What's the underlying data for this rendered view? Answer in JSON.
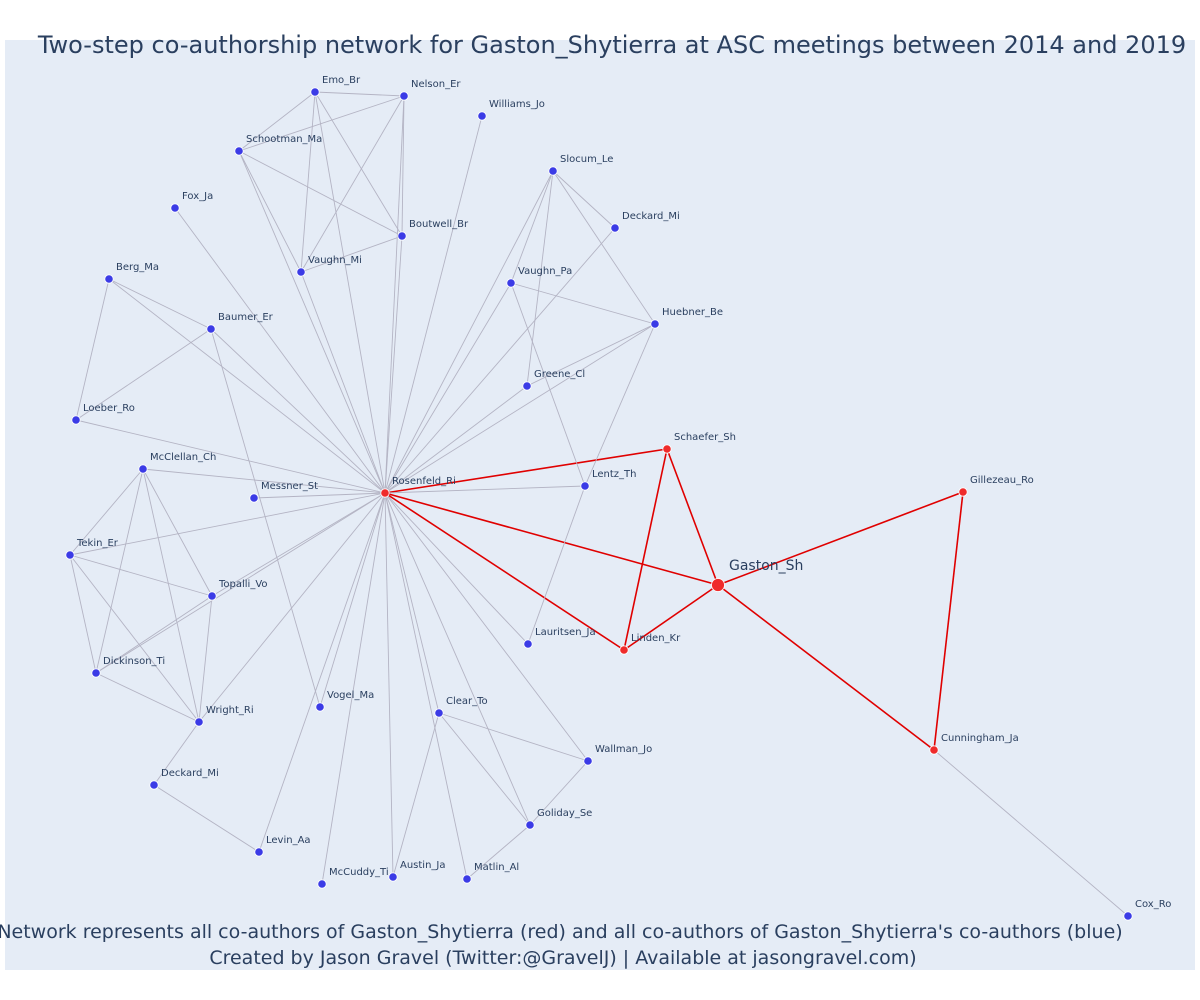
{
  "title": "Two-step co-authorship network for Gaston_Shytierra at ASC meetings between 2014 and 2019",
  "caption_line1": "Network represents all co-authors of Gaston_Shytierra (red) and all co-authors of Gaston_Shytierra's co-authors (blue)",
  "caption_line2": "Created by Jason Gravel (Twitter:@GravelJ) | Available at jasongravel.com)",
  "colors": {
    "background": "#e5ecf6",
    "first_step_node": "#ef2b2b",
    "second_step_node": "#3b3be6",
    "first_step_edge": "#e00000",
    "second_step_edge": "#b4b4c4",
    "text": "#2a3f5f"
  },
  "focal_author": "Gaston_Sh",
  "nodes": [
    {
      "id": "Emo_Br",
      "group": "second"
    },
    {
      "id": "Nelson_Er",
      "group": "second"
    },
    {
      "id": "Williams_Jo",
      "group": "second"
    },
    {
      "id": "Schootman_Ma",
      "group": "second"
    },
    {
      "id": "Slocum_Le",
      "group": "second"
    },
    {
      "id": "Fox_Ja",
      "group": "second"
    },
    {
      "id": "Deckard_Mi",
      "group": "second"
    },
    {
      "id": "Boutwell_Br",
      "group": "second"
    },
    {
      "id": "Vaughn_Mi",
      "group": "second"
    },
    {
      "id": "Berg_Ma",
      "group": "second"
    },
    {
      "id": "Vaughn_Pa",
      "group": "second"
    },
    {
      "id": "Baumer_Er",
      "group": "second"
    },
    {
      "id": "Huebner_Be",
      "group": "second"
    },
    {
      "id": "Greene_Cl",
      "group": "second"
    },
    {
      "id": "Loeber_Ro",
      "group": "second"
    },
    {
      "id": "Schaefer_Sh",
      "group": "first"
    },
    {
      "id": "McClellan_Ch",
      "group": "second"
    },
    {
      "id": "Messner_St",
      "group": "second"
    },
    {
      "id": "Rosenfeld_Ri",
      "group": "first"
    },
    {
      "id": "Lentz_Th",
      "group": "second"
    },
    {
      "id": "Gillezeau_Ro",
      "group": "first"
    },
    {
      "id": "Tekin_Er",
      "group": "second"
    },
    {
      "id": "Gaston_Sh",
      "group": "focal"
    },
    {
      "id": "Topalli_Vo",
      "group": "second"
    },
    {
      "id": "Lauritsen_Ja",
      "group": "second"
    },
    {
      "id": "Linden_Kr",
      "group": "first"
    },
    {
      "id": "Dickinson_Ti",
      "group": "second"
    },
    {
      "id": "Vogel_Ma",
      "group": "second"
    },
    {
      "id": "Clear_To",
      "group": "second"
    },
    {
      "id": "Wright_Ri",
      "group": "second"
    },
    {
      "id": "Cunningham_Ja",
      "group": "first"
    },
    {
      "id": "Wallman_Jo",
      "group": "second"
    },
    {
      "id": "Deckard_Mi ",
      "group": "second"
    },
    {
      "id": "Goliday_Se",
      "group": "second"
    },
    {
      "id": "Levin_Aa",
      "group": "second"
    },
    {
      "id": "McCuddy_Ti",
      "group": "second"
    },
    {
      "id": "Austin_Ja",
      "group": "second"
    },
    {
      "id": "Matlin_Al",
      "group": "second"
    },
    {
      "id": "Cox_Ro",
      "group": "second"
    }
  ],
  "edges": [
    [
      "Gaston_Sh",
      "Rosenfeld_Ri",
      "first"
    ],
    [
      "Gaston_Sh",
      "Schaefer_Sh",
      "first"
    ],
    [
      "Gaston_Sh",
      "Linden_Kr",
      "first"
    ],
    [
      "Gaston_Sh",
      "Gillezeau_Ro",
      "first"
    ],
    [
      "Gaston_Sh",
      "Cunningham_Ja",
      "first"
    ],
    [
      "Rosenfeld_Ri",
      "Schaefer_Sh",
      "first"
    ],
    [
      "Rosenfeld_Ri",
      "Linden_Kr",
      "first"
    ],
    [
      "Schaefer_Sh",
      "Linden_Kr",
      "first"
    ],
    [
      "Gillezeau_Ro",
      "Cunningham_Ja",
      "first"
    ],
    [
      "Cunningham_Ja",
      "Cox_Ro",
      "second"
    ],
    [
      "Rosenfeld_Ri",
      "Emo_Br",
      "second"
    ],
    [
      "Rosenfeld_Ri",
      "Nelson_Er",
      "second"
    ],
    [
      "Rosenfeld_Ri",
      "Williams_Jo",
      "second"
    ],
    [
      "Rosenfeld_Ri",
      "Schootman_Ma",
      "second"
    ],
    [
      "Rosenfeld_Ri",
      "Slocum_Le",
      "second"
    ],
    [
      "Rosenfeld_Ri",
      "Fox_Ja",
      "second"
    ],
    [
      "Rosenfeld_Ri",
      "Deckard_Mi",
      "second"
    ],
    [
      "Rosenfeld_Ri",
      "Boutwell_Br",
      "second"
    ],
    [
      "Rosenfeld_Ri",
      "Vaughn_Mi",
      "second"
    ],
    [
      "Rosenfeld_Ri",
      "Berg_Ma",
      "second"
    ],
    [
      "Rosenfeld_Ri",
      "Vaughn_Pa",
      "second"
    ],
    [
      "Rosenfeld_Ri",
      "Baumer_Er",
      "second"
    ],
    [
      "Rosenfeld_Ri",
      "Huebner_Be",
      "second"
    ],
    [
      "Rosenfeld_Ri",
      "Greene_Cl",
      "second"
    ],
    [
      "Rosenfeld_Ri",
      "Loeber_Ro",
      "second"
    ],
    [
      "Rosenfeld_Ri",
      "McClellan_Ch",
      "second"
    ],
    [
      "Rosenfeld_Ri",
      "Messner_St",
      "second"
    ],
    [
      "Rosenfeld_Ri",
      "Lentz_Th",
      "second"
    ],
    [
      "Rosenfeld_Ri",
      "Tekin_Er",
      "second"
    ],
    [
      "Rosenfeld_Ri",
      "Topalli_Vo",
      "second"
    ],
    [
      "Rosenfeld_Ri",
      "Lauritsen_Ja",
      "second"
    ],
    [
      "Rosenfeld_Ri",
      "Dickinson_Ti",
      "second"
    ],
    [
      "Rosenfeld_Ri",
      "Vogel_Ma",
      "second"
    ],
    [
      "Rosenfeld_Ri",
      "Clear_To",
      "second"
    ],
    [
      "Rosenfeld_Ri",
      "Wright_Ri",
      "second"
    ],
    [
      "Rosenfeld_Ri",
      "Wallman_Jo",
      "second"
    ],
    [
      "Rosenfeld_Ri",
      "Goliday_Se",
      "second"
    ],
    [
      "Rosenfeld_Ri",
      "Levin_Aa",
      "second"
    ],
    [
      "Rosenfeld_Ri",
      "McCuddy_Ti",
      "second"
    ],
    [
      "Rosenfeld_Ri",
      "Austin_Ja",
      "second"
    ],
    [
      "Rosenfeld_Ri",
      "Matlin_Al",
      "second"
    ],
    [
      "Emo_Br",
      "Nelson_Er",
      "second"
    ],
    [
      "Emo_Br",
      "Schootman_Ma",
      "second"
    ],
    [
      "Emo_Br",
      "Boutwell_Br",
      "second"
    ],
    [
      "Emo_Br",
      "Vaughn_Mi",
      "second"
    ],
    [
      "Nelson_Er",
      "Schootman_Ma",
      "second"
    ],
    [
      "Nelson_Er",
      "Boutwell_Br",
      "second"
    ],
    [
      "Nelson_Er",
      "Vaughn_Mi",
      "second"
    ],
    [
      "Schootman_Ma",
      "Boutwell_Br",
      "second"
    ],
    [
      "Schootman_Ma",
      "Vaughn_Mi",
      "second"
    ],
    [
      "Vaughn_Mi",
      "Boutwell_Br",
      "second"
    ],
    [
      "Slocum_Le",
      "Deckard_Mi",
      "second"
    ],
    [
      "Slocum_Le",
      "Huebner_Be",
      "second"
    ],
    [
      "Slocum_Le",
      "Greene_Cl",
      "second"
    ],
    [
      "Slocum_Le",
      "Vaughn_Pa",
      "second"
    ],
    [
      "Vaughn_Pa",
      "Huebner_Be",
      "second"
    ],
    [
      "Vaughn_Pa",
      "Lentz_Th",
      "second"
    ],
    [
      "Greene_Cl",
      "Huebner_Be",
      "second"
    ],
    [
      "Huebner_Be",
      "Lentz_Th",
      "second"
    ],
    [
      "Lentz_Th",
      "Lauritsen_Ja",
      "second"
    ],
    [
      "Berg_Ma",
      "Baumer_Er",
      "second"
    ],
    [
      "Berg_Ma",
      "Loeber_Ro",
      "second"
    ],
    [
      "Baumer_Er",
      "Loeber_Ro",
      "second"
    ],
    [
      "Baumer_Er",
      "Vogel_Ma",
      "second"
    ],
    [
      "McClellan_Ch",
      "Tekin_Er",
      "second"
    ],
    [
      "McClellan_Ch",
      "Topalli_Vo",
      "second"
    ],
    [
      "McClellan_Ch",
      "Dickinson_Ti",
      "second"
    ],
    [
      "McClellan_Ch",
      "Wright_Ri",
      "second"
    ],
    [
      "Tekin_Er",
      "Topalli_Vo",
      "second"
    ],
    [
      "Tekin_Er",
      "Dickinson_Ti",
      "second"
    ],
    [
      "Tekin_Er",
      "Wright_Ri",
      "second"
    ],
    [
      "Topalli_Vo",
      "Dickinson_Ti",
      "second"
    ],
    [
      "Topalli_Vo",
      "Wright_Ri",
      "second"
    ],
    [
      "Dickinson_Ti",
      "Wright_Ri",
      "second"
    ],
    [
      "Wright_Ri",
      "Deckard_Mi ",
      "second"
    ],
    [
      "Deckard_Mi ",
      "Levin_Aa",
      "second"
    ],
    [
      "Clear_To",
      "Wallman_Jo",
      "second"
    ],
    [
      "Clear_To",
      "Goliday_Se",
      "second"
    ],
    [
      "Clear_To",
      "Austin_Ja",
      "second"
    ],
    [
      "Goliday_Se",
      "Wallman_Jo",
      "second"
    ],
    [
      "Goliday_Se",
      "Matlin_Al",
      "second"
    ]
  ]
}
